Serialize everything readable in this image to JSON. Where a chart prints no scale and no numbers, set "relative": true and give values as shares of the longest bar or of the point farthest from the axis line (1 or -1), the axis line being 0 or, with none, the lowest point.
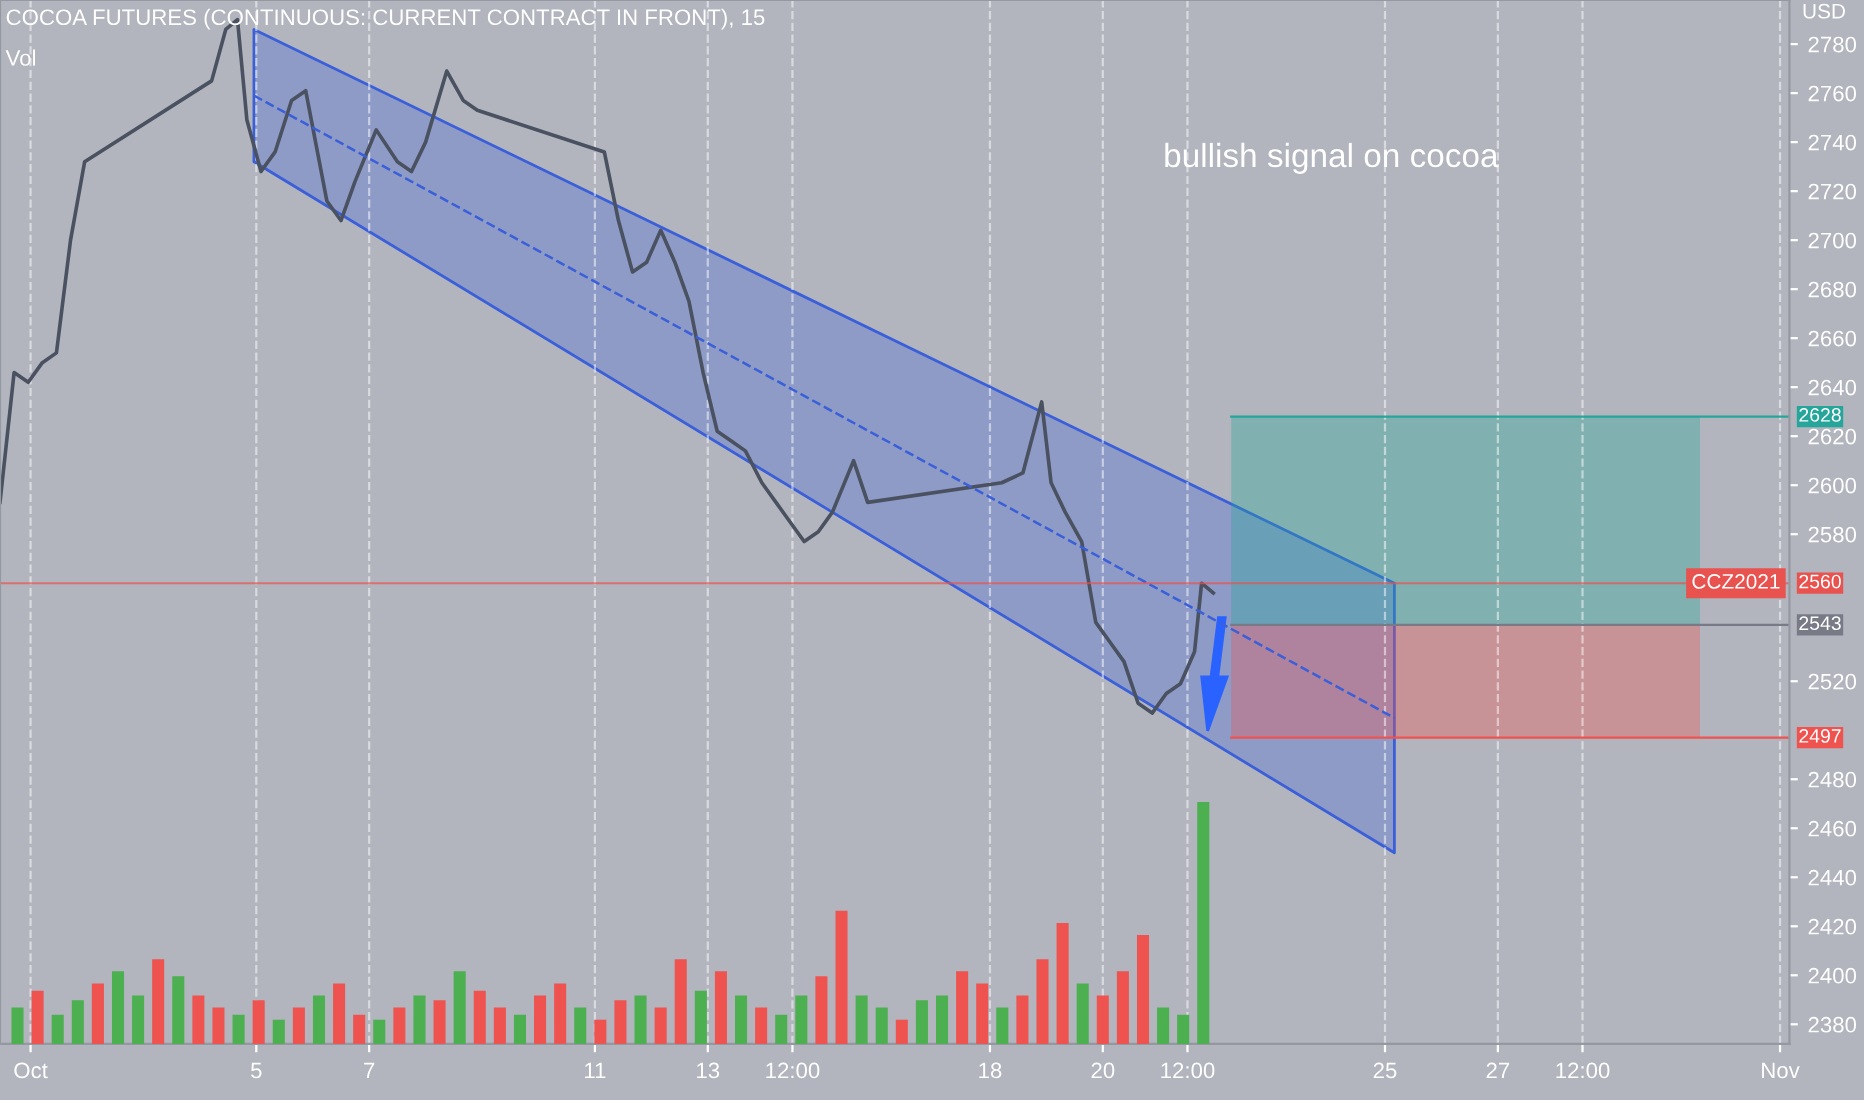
{
  "chart_data": [
    {
      "type": "line",
      "title": "COCOA FUTURES (CONTINUOUS: CURRENT CONTRACT IN FRONT), 15",
      "ylabel": "USD",
      "annotations": [
        "bullish signal on cocoa",
        {
          "text": "CCZ2021",
          "y": 2560
        }
      ],
      "xlim": [
        "2021-09-30T11:00",
        "2021-11-01T04:00"
      ],
      "ylim": [
        2372,
        2798
      ],
      "xticks": [
        {
          "value": "2021-10-01",
          "label": "Oct"
        },
        {
          "value": "2021-10-05",
          "label": "5"
        },
        {
          "value": "2021-10-07",
          "label": "7"
        },
        {
          "value": "2021-10-11",
          "label": "11"
        },
        {
          "value": "2021-10-13",
          "label": "13"
        },
        {
          "value": "2021-10-14T12:00",
          "label": "12:00"
        },
        {
          "value": "2021-10-18",
          "label": "18"
        },
        {
          "value": "2021-10-20",
          "label": "20"
        },
        {
          "value": "2021-10-21T12:00",
          "label": "12:00"
        },
        {
          "value": "2021-10-25",
          "label": "25"
        },
        {
          "value": "2021-10-27",
          "label": "27"
        },
        {
          "value": "2021-10-28T12:00",
          "label": "12:00"
        },
        {
          "value": "2021-11-01",
          "label": "Nov"
        }
      ],
      "yticks": [
        2380,
        2400,
        2420,
        2440,
        2460,
        2480,
        2520,
        2580,
        2600,
        2620,
        2640,
        2660,
        2680,
        2700,
        2720,
        2740,
        2760,
        2780
      ],
      "grid": "x",
      "series": [
        {
          "color": "#4a5160",
          "line_style": "solid",
          "x": [
            "2021-09-30T11:00",
            "2021-09-30T17:00",
            "2021-09-30T23:00",
            "2021-10-01T05:00",
            "2021-10-01T11:00",
            "2021-10-01T17:00",
            "2021-10-01T23:00",
            "2021-10-04T05:00",
            "2021-10-04T11:00",
            "2021-10-04T16:00",
            "2021-10-04T20:00",
            "2021-10-05T02:00",
            "2021-10-05T08:00",
            "2021-10-05T15:00",
            "2021-10-05T21:00",
            "2021-10-06T06:00",
            "2021-10-06T12:00",
            "2021-10-06T18:00",
            "2021-10-07T03:00",
            "2021-10-07T12:00",
            "2021-10-07T18:00",
            "2021-10-08T00:00",
            "2021-10-08T09:00",
            "2021-10-08T16:00",
            "2021-10-08T22:00",
            "2021-10-11T04:00",
            "2021-10-11T10:00",
            "2021-10-11T16:00",
            "2021-10-11T22:00",
            "2021-10-12T04:00",
            "2021-10-12T10:00",
            "2021-10-12T16:00",
            "2021-10-12T22:00",
            "2021-10-13T04:00",
            "2021-10-13T10:00",
            "2021-10-13T16:00",
            "2021-10-13T23:00",
            "2021-10-14T05:00",
            "2021-10-14T11:00",
            "2021-10-14T17:00",
            "2021-10-14T23:00",
            "2021-10-15T05:00",
            "2021-10-15T14:00",
            "2021-10-15T20:00",
            "2021-10-18T05:00",
            "2021-10-18T14:00",
            "2021-10-18T22:00",
            "2021-10-19T02:00",
            "2021-10-19T08:00",
            "2021-10-19T15:00",
            "2021-10-19T21:00",
            "2021-10-20T03:00",
            "2021-10-20T09:00",
            "2021-10-20T15:00",
            "2021-10-20T21:00",
            "2021-10-21T03:00",
            "2021-10-21T09:00",
            "2021-10-21T15:00",
            "2021-10-21T18:00",
            "2021-10-21T23:00"
          ],
          "values": [
            2593,
            2646,
            2642,
            2650,
            2654,
            2700,
            2732,
            2765,
            2786,
            2790,
            2749,
            2728,
            2736,
            2757,
            2761,
            2716,
            2708,
            2724,
            2745,
            2732,
            2728,
            2740,
            2769,
            2757,
            2753,
            2736,
            2708,
            2687,
            2691,
            2704,
            2691,
            2675,
            2646,
            2622,
            2618,
            2614,
            2601,
            2593,
            2585,
            2577,
            2581,
            2589,
            2610,
            2593,
            2601,
            2605,
            2634,
            2601,
            2589,
            2577,
            2544,
            2536,
            2528,
            2511,
            2507,
            2515,
            2519,
            2532,
            2560,
            2556
          ]
        },
        {
          "color": "#3a5fd9",
          "line_style": "dashed",
          "x": [
            "2021-10-04T23:00",
            "2021-10-25T04:00"
          ],
          "values": [
            2759,
            2505
          ],
          "lower": [
            2732,
            2450
          ],
          "upper": [
            2786,
            2560
          ]
        }
      ],
      "ref_lines": [
        {
          "axis": "y",
          "value": 2560,
          "label": "2560",
          "color": "#e8534f"
        },
        {
          "axis": "y",
          "value": 2628,
          "label": "2628",
          "color": "#26a69a"
        },
        {
          "axis": "y",
          "value": 2543,
          "label": "2543",
          "color": "#787b86"
        },
        {
          "axis": "y",
          "value": 2497,
          "label": "2497",
          "color": "#ef5350"
        }
      ],
      "bands": [
        {
          "axis": "y",
          "from": 2543,
          "to": 2628,
          "color": "#26a69a"
        },
        {
          "axis": "y",
          "from": 2497,
          "to": 2543,
          "color": "#ef5350"
        }
      ]
    },
    {
      "type": "bar",
      "title": "Vol",
      "relative": true,
      "categories": [
        null,
        null,
        null,
        null,
        null,
        null,
        null,
        null,
        null,
        null,
        null,
        null,
        null,
        null,
        null,
        null,
        null,
        null,
        null,
        null,
        null,
        null,
        null,
        null,
        null,
        null,
        null,
        null,
        null,
        null,
        null,
        null,
        null,
        null,
        null,
        null,
        null,
        null,
        null,
        null,
        null,
        null,
        null,
        null,
        null,
        null,
        null,
        null,
        null,
        null,
        null,
        null,
        null,
        null,
        null,
        null,
        null,
        null,
        null,
        null
      ],
      "values": [
        0.15,
        0.22,
        0.12,
        0.18,
        0.25,
        0.3,
        0.2,
        0.35,
        0.28,
        0.2,
        0.15,
        0.12,
        0.18,
        0.1,
        0.15,
        0.2,
        0.25,
        0.12,
        0.1,
        0.15,
        0.2,
        0.18,
        0.3,
        0.22,
        0.15,
        0.12,
        0.2,
        0.25,
        0.15,
        0.1,
        0.18,
        0.2,
        0.15,
        0.35,
        0.22,
        0.3,
        0.2,
        0.15,
        0.12,
        0.2,
        0.28,
        0.55,
        0.2,
        0.15,
        0.1,
        0.18,
        0.2,
        0.3,
        0.25,
        0.15,
        0.2,
        0.35,
        0.5,
        0.25,
        0.2,
        0.3,
        0.45,
        0.15,
        0.12,
        1
      ],
      "colors": [
        "#4caf50",
        "#ef5350",
        "#4caf50",
        "#4caf50",
        "#ef5350",
        "#4caf50",
        "#4caf50",
        "#ef5350",
        "#4caf50",
        "#ef5350",
        "#ef5350",
        "#4caf50",
        "#ef5350",
        "#4caf50",
        "#ef5350",
        "#4caf50",
        "#ef5350",
        "#ef5350",
        "#4caf50",
        "#ef5350",
        "#4caf50",
        "#ef5350",
        "#4caf50",
        "#ef5350",
        "#ef5350",
        "#4caf50",
        "#ef5350",
        "#ef5350",
        "#4caf50",
        "#ef5350",
        "#ef5350",
        "#4caf50",
        "#ef5350",
        "#ef5350",
        "#4caf50",
        "#ef5350",
        "#4caf50",
        "#ef5350",
        "#4caf50",
        "#4caf50",
        "#ef5350",
        "#ef5350",
        "#4caf50",
        "#4caf50",
        "#ef5350",
        "#4caf50",
        "#4caf50",
        "#ef5350",
        "#ef5350",
        "#4caf50",
        "#ef5350",
        "#ef5350",
        "#ef5350",
        "#4caf50",
        "#ef5350",
        "#ef5350",
        "#ef5350",
        "#4caf50",
        "#4caf50",
        "#4caf50"
      ]
    }
  ]
}
